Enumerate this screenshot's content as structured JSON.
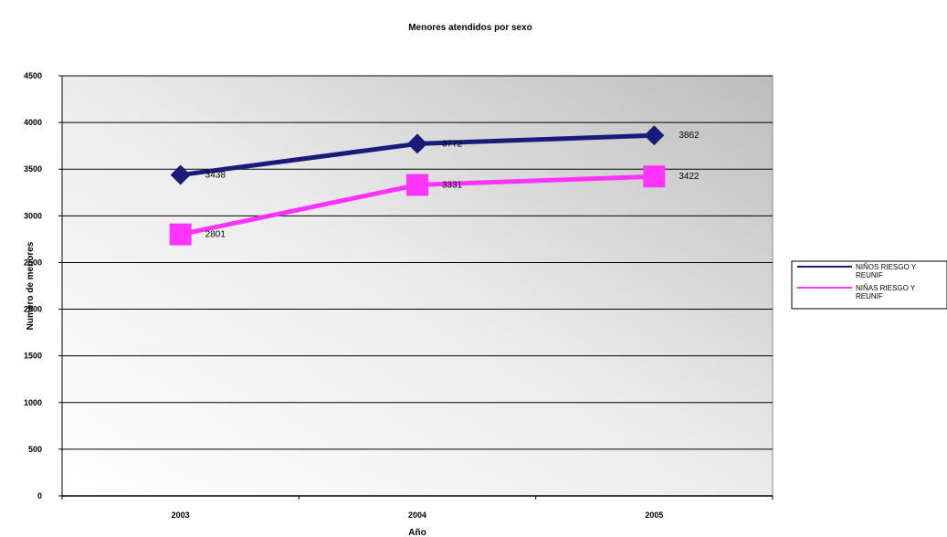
{
  "chart_data": {
    "type": "line",
    "title": "Menores atendidos por sexo",
    "xlabel": "Año",
    "ylabel": "Numero de menores",
    "categories": [
      "2003",
      "2004",
      "2005"
    ],
    "ylim": [
      0,
      4500
    ],
    "yticks": [
      "0",
      "500",
      "1000",
      "1500",
      "2000",
      "2500",
      "3000",
      "3500",
      "4000",
      "4500"
    ],
    "grid": true,
    "legend_position": "right",
    "series": [
      {
        "name": "NIÑOS RIESGO Y REUNIF",
        "values": [
          3438,
          3772,
          3862
        ],
        "labels": [
          "3438",
          "3772",
          "3862"
        ],
        "color": "#1a1a7a",
        "marker": "diamond"
      },
      {
        "name": "NIÑAS RIESGO Y REUNIF",
        "values": [
          2801,
          3331,
          3422
        ],
        "labels": [
          "2801",
          "3331",
          "3422"
        ],
        "color": "#ff33ff",
        "marker": "square"
      }
    ]
  }
}
